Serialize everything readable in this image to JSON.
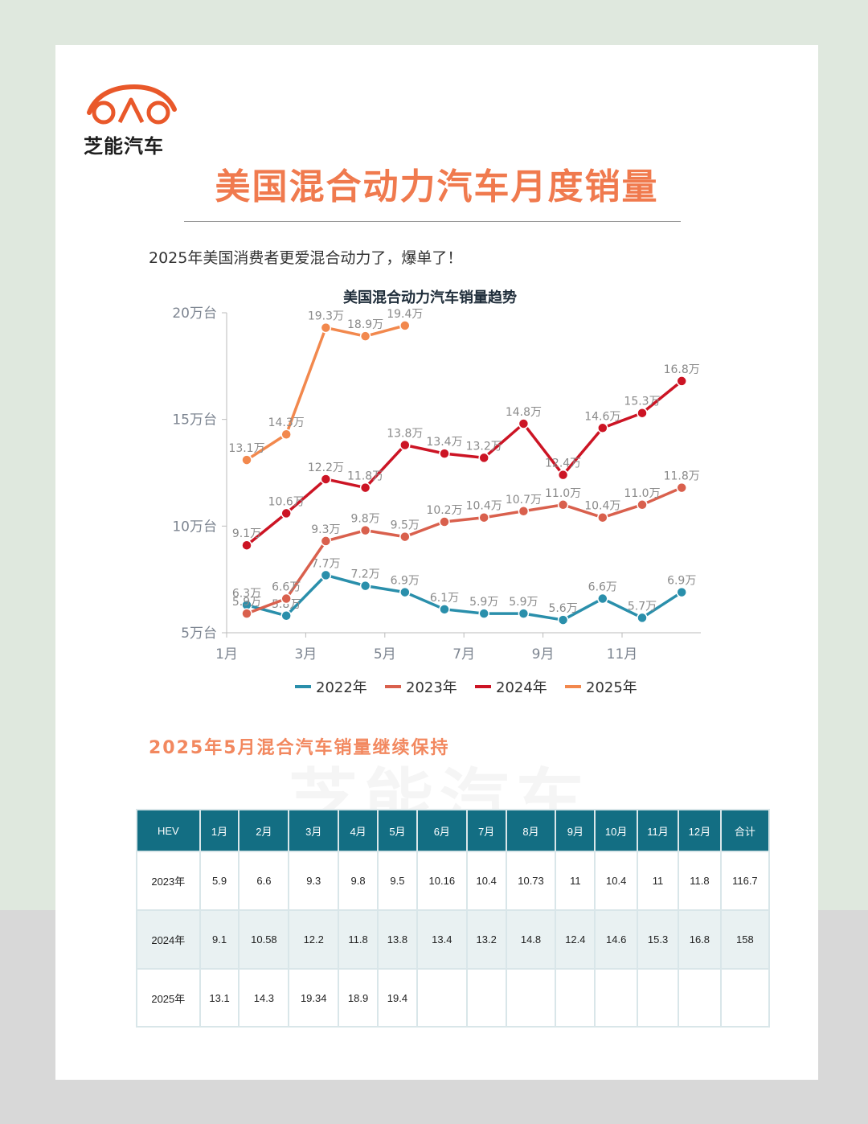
{
  "brand": {
    "name": "芝能汽车",
    "logo_color": "#e9582a",
    "title_color": "#f07a4e"
  },
  "title": "美国混合动力汽车月度销量",
  "subtitle": "2025年美国消费者更爱混合动力了，爆单了！",
  "section_title": "2025年5月混合汽车销量继续保持",
  "watermark": "芝能汽车",
  "chart_data": {
    "type": "line",
    "title": "美国混合动力汽车销量趋势",
    "xlabel": "",
    "ylabel": "",
    "x_ticks": [
      "1月",
      "3月",
      "5月",
      "7月",
      "9月",
      "11月"
    ],
    "y_ticks": [
      "5万台",
      "10万台",
      "15万台",
      "20万台"
    ],
    "ylim": [
      5,
      20
    ],
    "grid": false,
    "legend_position": "bottom",
    "series": [
      {
        "name": "2022年",
        "color": "#2a8fab",
        "values": [
          6.3,
          5.8,
          7.7,
          7.2,
          6.9,
          6.1,
          5.9,
          5.9,
          5.6,
          6.6,
          5.7,
          6.9
        ],
        "labels": [
          "6.3万",
          "5.8万",
          "7.7万",
          "7.2万",
          "6.9万",
          "6.1万",
          "5.9万",
          "5.9万",
          "5.6万",
          "6.6万",
          "5.7万",
          "6.9万"
        ]
      },
      {
        "name": "2023年",
        "color": "#d9604d",
        "values": [
          5.9,
          6.6,
          9.3,
          9.8,
          9.5,
          10.2,
          10.4,
          10.7,
          11.0,
          10.4,
          11.0,
          11.8
        ],
        "labels": [
          "5.9万",
          "6.6万",
          "9.3万",
          "9.8万",
          "9.5万",
          "10.2万",
          "10.4万",
          "10.7万",
          "11.0万",
          "10.4万",
          "11.0万",
          "11.8万"
        ]
      },
      {
        "name": "2024年",
        "color": "#cc1424",
        "values": [
          9.1,
          10.6,
          12.2,
          11.8,
          13.8,
          13.4,
          13.2,
          14.8,
          12.4,
          14.6,
          15.3,
          16.8
        ],
        "labels": [
          "9.1万",
          "10.6万",
          "12.2万",
          "11.8万",
          "13.8万",
          "13.4万",
          "13.2万",
          "14.8万",
          "12.4万",
          "14.6万",
          "15.3万",
          "16.8万"
        ]
      },
      {
        "name": "2025年",
        "color": "#f2884d",
        "values": [
          13.1,
          14.3,
          19.3,
          18.9,
          19.4
        ],
        "labels": [
          "13.1万",
          "14.3万",
          "19.3万",
          "18.9万",
          "19.4万"
        ]
      }
    ]
  },
  "table": {
    "headers": [
      "HEV",
      "1月",
      "2月",
      "3月",
      "4月",
      "5月",
      "6月",
      "7月",
      "8月",
      "9月",
      "10月",
      "11月",
      "12月",
      "合计"
    ],
    "rows": [
      [
        "2023年",
        "5.9",
        "6.6",
        "9.3",
        "9.8",
        "9.5",
        "10.16",
        "10.4",
        "10.73",
        "11",
        "10.4",
        "11",
        "11.8",
        "116.7"
      ],
      [
        "2024年",
        "9.1",
        "10.58",
        "12.2",
        "11.8",
        "13.8",
        "13.4",
        "13.2",
        "14.8",
        "12.4",
        "14.6",
        "15.3",
        "16.8",
        "158"
      ],
      [
        "2025年",
        "13.1",
        "14.3",
        "19.34",
        "18.9",
        "19.4",
        "",
        "",
        "",
        "",
        "",
        "",
        "",
        ""
      ]
    ]
  }
}
